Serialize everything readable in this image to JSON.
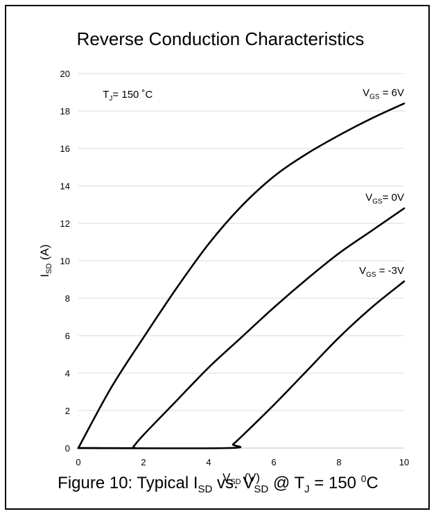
{
  "caption": {
    "prefix": "Figure 10: Typical I",
    "sub1": "SD",
    "mid1": " vs. V",
    "sub2": "SD",
    "mid2": " @ T",
    "sub3": "J",
    "mid3": " = 150 ",
    "sup": "0",
    "suffix": "C"
  },
  "chart_data": {
    "type": "line",
    "title": "Reverse Conduction Characteristics",
    "xlabel": {
      "main": "V",
      "sub": "SD",
      "tail": " (V)"
    },
    "ylabel": {
      "main": "I",
      "sub": "SD",
      "tail": " (A)"
    },
    "xlim": [
      0,
      10
    ],
    "ylim": [
      0,
      20
    ],
    "xticks": [
      0,
      2,
      4,
      6,
      8,
      10
    ],
    "yticks": [
      0,
      2,
      4,
      6,
      8,
      10,
      12,
      14,
      16,
      18,
      20
    ],
    "grid": "horizontal",
    "annotation": {
      "main": "T",
      "sub": "J",
      "tail": "= 150 ˚C"
    },
    "series": [
      {
        "label": {
          "main": "V",
          "sub": "GS",
          "tail": " = 6V"
        },
        "label_at": [
          10,
          18.8
        ],
        "x": [
          0,
          1,
          2,
          3,
          4,
          5,
          6,
          7,
          8,
          9,
          10
        ],
        "y": [
          0,
          3.2,
          5.9,
          8.5,
          10.9,
          12.9,
          14.5,
          15.7,
          16.7,
          17.6,
          18.4
        ]
      },
      {
        "label": {
          "main": "V",
          "sub": "GS",
          "tail": "= 0V"
        },
        "label_at": [
          10,
          13.2
        ],
        "x": [
          0,
          1.6,
          1.7,
          2,
          3,
          4,
          5,
          6,
          7,
          8,
          9,
          10
        ],
        "y": [
          0,
          0,
          0.1,
          0.7,
          2.5,
          4.3,
          5.9,
          7.5,
          9.0,
          10.4,
          11.6,
          12.8
        ]
      },
      {
        "label": {
          "main": "V",
          "sub": "GS",
          "tail": " = -3V"
        },
        "label_at": [
          10,
          9.3
        ],
        "x": [
          0,
          4.6,
          4.75,
          5,
          6,
          7,
          8,
          9,
          10
        ],
        "y": [
          0,
          0,
          0.2,
          0.6,
          2.3,
          4.1,
          5.9,
          7.5,
          8.9
        ]
      }
    ]
  }
}
